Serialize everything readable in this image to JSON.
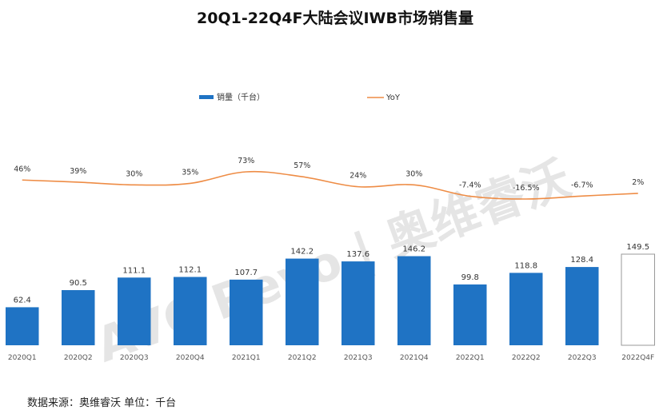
{
  "chart_data": {
    "type": "bar",
    "title": "20Q1-22Q4F大陆会议IWB市场销售量",
    "categories": [
      "2020Q1",
      "2020Q2",
      "2020Q3",
      "2020Q4",
      "2021Q1",
      "2021Q2",
      "2021Q3",
      "2021Q4",
      "2022Q1",
      "2022Q2",
      "2022Q3",
      "2022Q4F"
    ],
    "series": [
      {
        "name": "销量（千台）",
        "type": "bar",
        "values": [
          62.4,
          90.5,
          111.1,
          112.1,
          107.7,
          142.2,
          137.6,
          146.2,
          99.8,
          118.8,
          128.4,
          149.5
        ],
        "labels": [
          "62.4",
          "90.5",
          "111.1",
          "112.1",
          "107.7",
          "142.2",
          "137.6",
          "146.2",
          "99.8",
          "118.8",
          "128.4",
          "149.5"
        ],
        "forecast_last": true
      },
      {
        "name": "YoY",
        "type": "line",
        "values": [
          46,
          39,
          30,
          35,
          73,
          57,
          24,
          30,
          -7.4,
          -16.5,
          -6.7,
          2
        ],
        "labels": [
          "46%",
          "39%",
          "30%",
          "35%",
          "73%",
          "57%",
          "24%",
          "30%",
          "-7.4%",
          "-16.5%",
          "-6.7%",
          "2%"
        ]
      }
    ],
    "colors": {
      "bar": "#1f73c4",
      "line": "#ee8c45",
      "forecast_fill": "#ffffff",
      "forecast_stroke": "#999999"
    },
    "legend_position": "top-center",
    "grid": false
  },
  "watermark": "AVC Revo | 奥维睿沃",
  "source": "数据来源：奥维睿沃    单位：千台"
}
